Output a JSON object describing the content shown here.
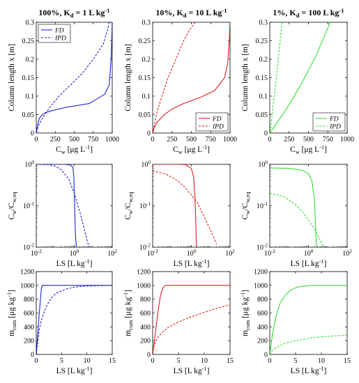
{
  "chart_data": [
    {
      "type": "line",
      "title": "100%, K_d = 1 L kg^-1",
      "xlabel": "C_w [μg L^-1]",
      "ylabel": "Column length x [m]",
      "xscale": "linear",
      "yscale": "linear",
      "xlim": [
        0,
        1000
      ],
      "ylim": [
        0,
        0.3
      ],
      "xticks": [
        0,
        250,
        500,
        750,
        1000
      ],
      "xtick_labels": [
        "0",
        "250",
        "500",
        "750",
        "1000"
      ],
      "yticks": [
        0,
        0.05,
        0.1,
        0.15,
        0.2,
        0.25,
        0.3
      ],
      "ytick_labels": [
        "0",
        "0.05",
        "0.1",
        "0.15",
        "0.2",
        "0.25",
        "0.3"
      ],
      "legend": {
        "position": "top-left"
      },
      "color": "#1f1fd6",
      "series": [
        {
          "name": "FD",
          "style": "solid",
          "x": [
            1000,
            985,
            960,
            900,
            700,
            400,
            200,
            120,
            80,
            40,
            15,
            0
          ],
          "y": [
            0.3,
            0.2,
            0.13,
            0.105,
            0.08,
            0.07,
            0.06,
            0.055,
            0.05,
            0.04,
            0.02,
            0.0
          ]
        },
        {
          "name": "IPD",
          "style": "dashed",
          "x": [
            960,
            940,
            880,
            750,
            600,
            450,
            300,
            180,
            80,
            30,
            0
          ],
          "y": [
            0.3,
            0.28,
            0.24,
            0.2,
            0.16,
            0.13,
            0.1,
            0.07,
            0.04,
            0.02,
            0.0
          ]
        }
      ]
    },
    {
      "type": "line",
      "title": "10%, K_d = 10 L kg^-1",
      "xlabel": "C_w [μg L^-1]",
      "ylabel": "Column length x [m]",
      "xscale": "linear",
      "yscale": "linear",
      "xlim": [
        0,
        1000
      ],
      "ylim": [
        0,
        0.3
      ],
      "xticks": [
        0,
        250,
        500,
        750,
        1000
      ],
      "xtick_labels": [
        "0",
        "250",
        "500",
        "750",
        "1000"
      ],
      "yticks": [
        0,
        0.05,
        0.1,
        0.15,
        0.2,
        0.25,
        0.3
      ],
      "ytick_labels": [
        "0",
        "0.05",
        "0.1",
        "0.15",
        "0.2",
        "0.25",
        "0.3"
      ],
      "legend": {
        "position": "bottom-right"
      },
      "color": "#e21d1d",
      "series": [
        {
          "name": "FD",
          "style": "solid",
          "x": [
            1000,
            990,
            970,
            930,
            800,
            600,
            400,
            250,
            150,
            60,
            20,
            0
          ],
          "y": [
            0.3,
            0.25,
            0.19,
            0.15,
            0.115,
            0.095,
            0.08,
            0.065,
            0.05,
            0.03,
            0.015,
            0.0
          ]
        },
        {
          "name": "IPD",
          "style": "dashed",
          "x": [
            550,
            480,
            400,
            300,
            200,
            120,
            60,
            20,
            0
          ],
          "y": [
            0.3,
            0.28,
            0.25,
            0.2,
            0.15,
            0.1,
            0.06,
            0.02,
            0.0
          ]
        }
      ]
    },
    {
      "type": "line",
      "title": "1%, K_d = 100 L kg^-1",
      "xlabel": "C_w [μg L^-1]",
      "ylabel": "Column length x [m]",
      "xscale": "linear",
      "yscale": "linear",
      "xlim": [
        0,
        1000
      ],
      "ylim": [
        0,
        0.3
      ],
      "xticks": [
        0,
        250,
        500,
        750,
        1000
      ],
      "xtick_labels": [
        "0",
        "250",
        "500",
        "750",
        "1000"
      ],
      "yticks": [
        0,
        0.05,
        0.1,
        0.15,
        0.2,
        0.25,
        0.3
      ],
      "ytick_labels": [
        "0",
        "0.05",
        "0.1",
        "0.15",
        "0.2",
        "0.25",
        "0.3"
      ],
      "legend": {
        "position": "bottom-right"
      },
      "color": "#33dd33",
      "series": [
        {
          "name": "FD",
          "style": "solid",
          "x": [
            780,
            600,
            400,
            200,
            100,
            0
          ],
          "y": [
            0.3,
            0.21,
            0.13,
            0.06,
            0.03,
            0.0
          ]
        },
        {
          "name": "IPD",
          "style": "dashed",
          "x": [
            160,
            120,
            80,
            40,
            15,
            0
          ],
          "y": [
            0.3,
            0.22,
            0.14,
            0.07,
            0.02,
            0.0
          ]
        }
      ]
    },
    {
      "type": "line",
      "xlabel": "LS [L kg^-1]",
      "ylabel": "C_w/C_w,eq",
      "xscale": "log",
      "yscale": "log",
      "xlim": [
        0.01,
        100
      ],
      "ylim": [
        0.01,
        1
      ],
      "xticks": [
        0.01,
        1,
        100
      ],
      "xtick_labels": [
        "10^-2",
        "10^0",
        "10^2"
      ],
      "yticks": [
        0.01,
        0.1,
        1
      ],
      "ytick_labels": [
        "10^-2",
        "10^-1",
        "10^0"
      ],
      "color": "#1f1fd6",
      "series": [
        {
          "name": "FD",
          "style": "solid",
          "x": [
            0.01,
            0.3,
            0.6,
            0.85,
            0.95,
            1.05,
            1.15,
            1.3
          ],
          "y": [
            1,
            1,
            0.97,
            0.85,
            0.5,
            0.1,
            0.02,
            0.01
          ]
        },
        {
          "name": "IPD",
          "style": "dashed",
          "x": [
            0.01,
            0.05,
            0.1,
            0.2,
            0.5,
            1,
            2,
            4,
            6
          ],
          "y": [
            1,
            0.98,
            0.9,
            0.75,
            0.45,
            0.2,
            0.07,
            0.02,
            0.01
          ]
        }
      ]
    },
    {
      "type": "line",
      "xlabel": "LS [L kg^-1]",
      "ylabel": "C_w/C_w,eq",
      "xscale": "log",
      "yscale": "log",
      "xlim": [
        0.01,
        100
      ],
      "ylim": [
        0.01,
        1
      ],
      "xticks": [
        0.01,
        1,
        100
      ],
      "xtick_labels": [
        "10^-2",
        "10^0",
        "10^2"
      ],
      "yticks": [
        0.01,
        0.1,
        1
      ],
      "ytick_labels": [
        "10^-2",
        "10^-1",
        "10^0"
      ],
      "color": "#e21d1d",
      "series": [
        {
          "name": "FD",
          "style": "solid",
          "x": [
            0.01,
            0.2,
            0.5,
            1,
            1.3,
            1.5,
            1.7,
            1.85
          ],
          "y": [
            1,
            1,
            0.98,
            0.8,
            0.5,
            0.2,
            0.04,
            0.01
          ]
        },
        {
          "name": "IPD",
          "style": "dashed",
          "x": [
            0.01,
            0.05,
            0.2,
            0.5,
            1,
            2,
            5,
            10,
            20
          ],
          "y": [
            0.7,
            0.58,
            0.4,
            0.27,
            0.18,
            0.12,
            0.05,
            0.025,
            0.012
          ]
        }
      ]
    },
    {
      "type": "line",
      "xlabel": "LS [L kg^-1]",
      "ylabel": "C_w/C_w,eq",
      "xscale": "log",
      "yscale": "log",
      "xlim": [
        0.01,
        100
      ],
      "ylim": [
        0.01,
        1
      ],
      "xticks": [
        0.01,
        1,
        100
      ],
      "xtick_labels": [
        "10^-2",
        "10^0",
        "10^2"
      ],
      "yticks": [
        0.01,
        0.1,
        1
      ],
      "ytick_labels": [
        "10^-2",
        "10^-1",
        "10^0"
      ],
      "color": "#33dd33",
      "series": [
        {
          "name": "FD",
          "style": "solid",
          "x": [
            0.01,
            0.1,
            0.5,
            1,
            1.5,
            2,
            2.3,
            2.6
          ],
          "y": [
            0.82,
            0.8,
            0.72,
            0.6,
            0.4,
            0.15,
            0.04,
            0.01
          ]
        },
        {
          "name": "IPD",
          "style": "dashed",
          "x": [
            0.01,
            0.05,
            0.2,
            0.5,
            1,
            2,
            3.5,
            5,
            6.5
          ],
          "y": [
            0.2,
            0.17,
            0.11,
            0.07,
            0.045,
            0.028,
            0.017,
            0.012,
            0.01
          ]
        }
      ]
    },
    {
      "type": "line",
      "xlabel": "LS [L kg^-1]",
      "ylabel": "m_cum [μg kg^-1]",
      "xscale": "linear",
      "yscale": "linear",
      "xlim": [
        0,
        15
      ],
      "ylim": [
        0,
        1200
      ],
      "xticks": [
        0,
        5,
        10,
        15
      ],
      "xtick_labels": [
        "0",
        "5",
        "10",
        "15"
      ],
      "yticks": [
        0,
        200,
        400,
        600,
        800,
        1000,
        1200
      ],
      "ytick_labels": [
        "0",
        "200",
        "400",
        "600",
        "800",
        "1000",
        "1200"
      ],
      "color": "#1f1fd6",
      "series": [
        {
          "name": "FD",
          "style": "solid",
          "x": [
            0,
            0.25,
            0.5,
            0.75,
            1,
            1.2,
            2,
            15
          ],
          "y": [
            0,
            250,
            500,
            740,
            950,
            1000,
            1000,
            1000
          ]
        },
        {
          "name": "IPD",
          "style": "dashed",
          "x": [
            0,
            0.5,
            1,
            2,
            3,
            4,
            6,
            8,
            10,
            12,
            15
          ],
          "y": [
            0,
            320,
            500,
            700,
            820,
            890,
            950,
            980,
            990,
            995,
            1000
          ]
        }
      ]
    },
    {
      "type": "line",
      "xlabel": "LS [L kg^-1]",
      "ylabel": "m_cum [μg kg^-1]",
      "xscale": "linear",
      "yscale": "linear",
      "xlim": [
        0,
        15
      ],
      "ylim": [
        0,
        1200
      ],
      "xticks": [
        0,
        5,
        10,
        15
      ],
      "xtick_labels": [
        "0",
        "5",
        "10",
        "15"
      ],
      "yticks": [
        0,
        200,
        400,
        600,
        800,
        1000,
        1200
      ],
      "ytick_labels": [
        "0",
        "200",
        "400",
        "600",
        "800",
        "1000",
        "1200"
      ],
      "color": "#e21d1d",
      "series": [
        {
          "name": "FD",
          "style": "solid",
          "x": [
            0,
            0.5,
            1,
            1.5,
            2,
            2.5,
            3,
            15
          ],
          "y": [
            0,
            300,
            600,
            850,
            970,
            1000,
            1000,
            1000
          ]
        },
        {
          "name": "IPD",
          "style": "dashed",
          "x": [
            0,
            0.2,
            0.5,
            1,
            2,
            3,
            5,
            8,
            10,
            12,
            15
          ],
          "y": [
            0,
            100,
            180,
            250,
            330,
            390,
            470,
            560,
            610,
            660,
            720
          ]
        }
      ]
    },
    {
      "type": "line",
      "xlabel": "LS [L kg^-1]",
      "ylabel": "m_cum [μg kg^-1]",
      "xscale": "linear",
      "yscale": "linear",
      "xlim": [
        0,
        15
      ],
      "ylim": [
        0,
        1200
      ],
      "xticks": [
        0,
        5,
        10,
        15
      ],
      "xtick_labels": [
        "0",
        "5",
        "10",
        "15"
      ],
      "yticks": [
        0,
        200,
        400,
        600,
        800,
        1000,
        1200
      ],
      "ytick_labels": [
        "0",
        "200",
        "400",
        "600",
        "800",
        "1000",
        "1200"
      ],
      "color": "#33dd33",
      "series": [
        {
          "name": "FD",
          "style": "solid",
          "x": [
            0,
            0.5,
            1,
            1.5,
            2,
            3,
            4,
            5,
            6,
            8,
            10,
            15
          ],
          "y": [
            0,
            280,
            480,
            630,
            740,
            860,
            930,
            965,
            985,
            998,
            1000,
            1000
          ]
        },
        {
          "name": "IPD",
          "style": "dashed",
          "x": [
            0,
            0.2,
            0.5,
            1,
            2,
            3,
            5,
            8,
            10,
            12,
            15
          ],
          "y": [
            0,
            30,
            60,
            90,
            130,
            160,
            200,
            240,
            255,
            265,
            280
          ]
        }
      ]
    }
  ]
}
